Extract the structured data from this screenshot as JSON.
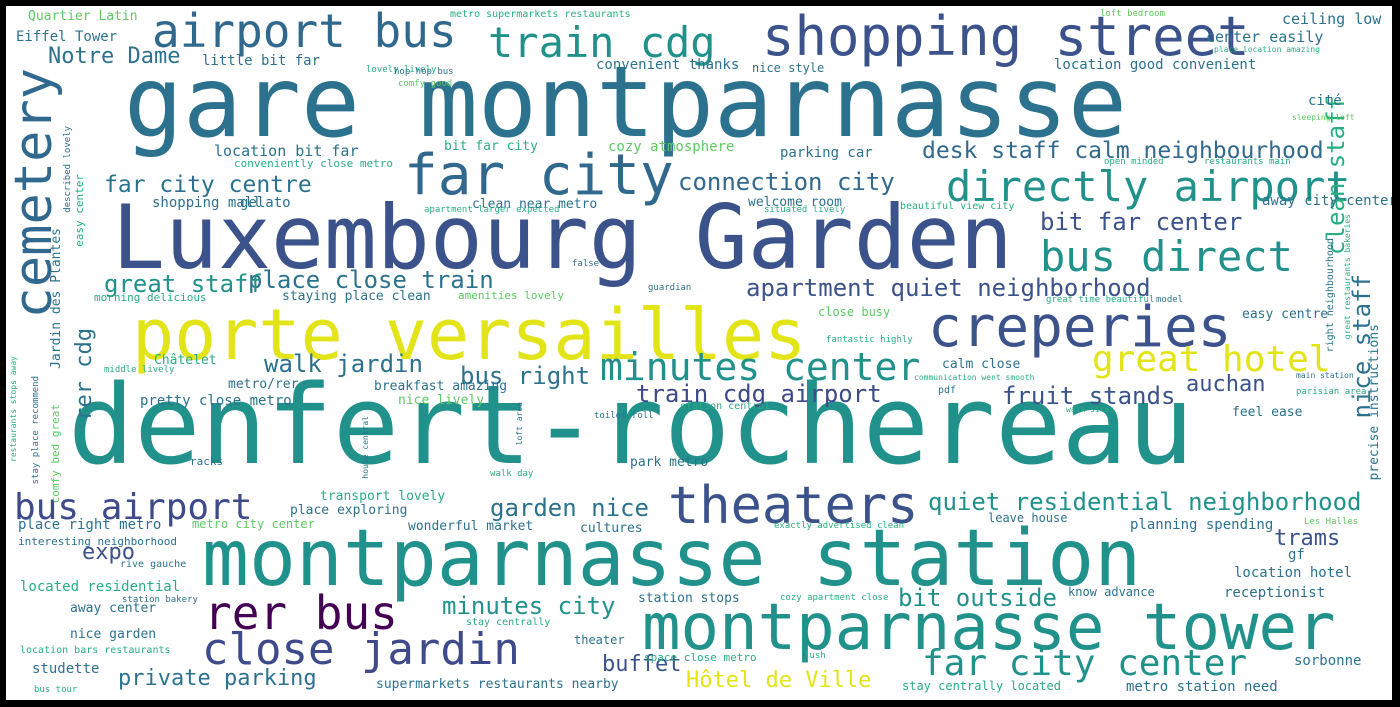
{
  "words": {
    "w1": "denfert-rochereau",
    "w2": "gare montparnasse",
    "w3": "Luxembourg Garden",
    "w4": "montparnasse station",
    "w5": "porte versailles",
    "w6": "montparnasse tower",
    "w7": "shopping street",
    "w8": "creperies",
    "w9": "theaters",
    "w10": "far city",
    "w11": "airport bus",
    "w12": "cemetery",
    "w13": "train cdg",
    "w14": "directly airport",
    "w15": "bus direct",
    "w16": "rer bus",
    "w17": "close jardin",
    "w18": "far city center",
    "w19": "great hotel",
    "w20": "minutes center",
    "w21": "bus airport",
    "w22": "quiet residential neighborhood",
    "w23": "apartment quiet neighborhood",
    "w24": "desk staff calm neighbourhood",
    "w25": "connection city",
    "w26": "far city centre",
    "w27": "train cdg airport",
    "w28": "fruit stands",
    "w29": "bit far center",
    "w30": "place close train",
    "w31": "great staff",
    "w32": "walk jardin",
    "w33": "bus right",
    "w34": "garden nice",
    "w35": "minutes city",
    "w36": "bit outside",
    "w37": "Notre Dame",
    "w38": "auchan",
    "w39": "expo",
    "w40": "trams",
    "w41": "Hôtel de Ville",
    "w42": "buffet",
    "w43": "private parking",
    "w44": "clean staff",
    "w45": "nice staff",
    "w46": "rer cdg",
    "w47": "Eiffel Tower",
    "w48": "Quartier Latin",
    "w49": "little bit far",
    "w50": "convenient thanks",
    "w51": "location good convenient",
    "w52": "center easily",
    "w53": "ceiling low",
    "w54": "metro supermarkets restaurants",
    "w55": "lovely lively",
    "w56": "nice style",
    "w57": "hop hop bus",
    "w58": "comfy good",
    "w59": "cité",
    "w60": "bit far city",
    "w61": "cozy atmosphere",
    "w62": "parking car",
    "w63": "location bit far",
    "w64": "conveniently close metro",
    "w65": "clean near metro",
    "w66": "welcome room",
    "w67": "shopping mall",
    "w68": "gelato",
    "w69": "apartment larger expected",
    "w70": "situated lively",
    "w71": "beautiful view city",
    "w72": "away city center",
    "w73": "staying place clean",
    "w74": "amenities lovely",
    "w75": "morning delicious",
    "w76": "Jardin des Plantes",
    "w77": "close busy",
    "w78": "fantastic highly",
    "w79": "Châtelet",
    "w80": "middle lively",
    "w81": "calm close",
    "w82": "metro/rer",
    "w83": "breakfast amazing",
    "w84": "pretty close metro",
    "w85": "nice lively",
    "w86": "station central",
    "w87": "toilet roll",
    "w88": "racks",
    "w89": "park metro",
    "w90": "walk day",
    "w91": "transport lovely",
    "w92": "place exploring",
    "w93": "place right metro",
    "w94": "metro city center",
    "w95": "wonderful market",
    "w96": "cultures",
    "w97": "leave house",
    "w98": "planning spending",
    "w99": "interesting neighborhood",
    "w100": "rive gauche",
    "w101": "located residential",
    "w102": "away center",
    "w103": "station bakery",
    "w104": "station stops",
    "w105": "cozy apartment close",
    "w106": "stay centrally",
    "w107": "know advance",
    "w108": "receptionist",
    "w109": "nice garden",
    "w110": "theater",
    "w111": "location bars restaurants",
    "w112": "studette",
    "w113": "space close metro",
    "w114": "lush",
    "w115": "sorbonne",
    "w116": "bus tour",
    "w117": "supermarkets restaurants nearby",
    "w118": "stay centrally located",
    "w119": "metro station need",
    "w120": "location hotel",
    "w121": "gf",
    "w122": "Les Halles",
    "w123": "precise instructions",
    "w124": "easy centre",
    "w125": "great time beautiful",
    "w126": "model",
    "w127": "right neighbourhood",
    "w128": "feel ease",
    "w129": "parisian area",
    "w130": "main station",
    "w131": "communication went smooth",
    "w132": "pdf",
    "w133": "walk sites",
    "w134": "exactly advertised clean",
    "w135": "easy center",
    "w136": "described lovely",
    "w137": "comfy bed great",
    "w138": "stay place recommend",
    "w139": "restaurants stops away",
    "w140": "open minded",
    "w141": "restaurants main",
    "w142": "guardian",
    "w143": "false",
    "w144": "loft bedroom",
    "w145": "place location amazing",
    "w146": "sleeping loft",
    "w147": "loft area",
    "w148": "house central",
    "w149": "great restaurants bakeries"
  }
}
